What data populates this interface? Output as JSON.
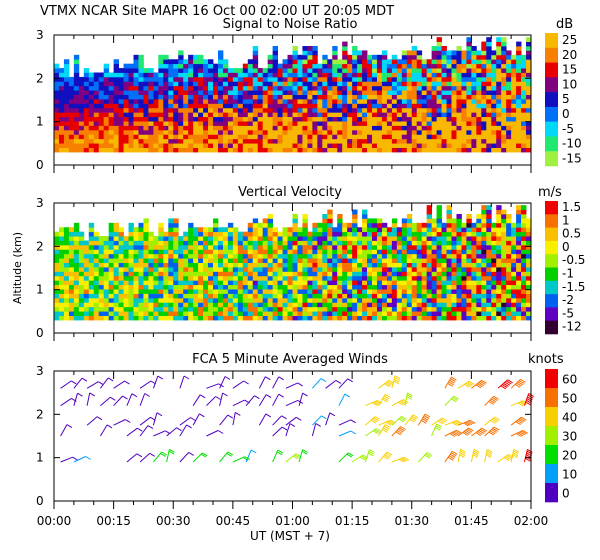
{
  "header": {
    "title": "VTMX   NCAR Site   MAPR 16 Oct 00   02:00 UT   20:05   MDT"
  },
  "chart_data": [
    {
      "type": "heatmap",
      "title": "Signal to Noise Ratio",
      "unit": "dB",
      "ylim": [
        0,
        3
      ],
      "yticks": [
        "0",
        "1",
        "2",
        "3"
      ],
      "legend": {
        "labels": [
          "25",
          "20",
          "15",
          "10",
          "5",
          "0",
          "-5",
          "-10",
          "-15"
        ],
        "colors": [
          "#f8b800",
          "#f88000",
          "#e80000",
          "#800080",
          "#1010c0",
          "#0070f8",
          "#00d8f8",
          "#20e870",
          "#a0f040"
        ]
      }
    },
    {
      "type": "heatmap",
      "title": "Vertical Velocity",
      "unit": "m/s",
      "ylabel": "Altitude (km)",
      "ylim": [
        0,
        3
      ],
      "yticks": [
        "0",
        "1",
        "2",
        "3"
      ],
      "legend": {
        "labels": [
          "1.5",
          "1",
          "0.5",
          "0",
          "-0.5",
          "-1",
          "-1.5",
          "-2",
          "-5",
          "-12"
        ],
        "colors": [
          "#f00000",
          "#f87000",
          "#f8c000",
          "#f8f000",
          "#a0f000",
          "#00d000",
          "#00c8c8",
          "#0060f0",
          "#6000c0",
          "#300030"
        ]
      }
    },
    {
      "type": "scatter",
      "title": "FCA 5 Minute Averaged Winds",
      "unit": "knots",
      "xlabel": "UT   (MST + 7)",
      "ylim": [
        0,
        3
      ],
      "yticks": [
        "0",
        "1",
        "2",
        "3"
      ],
      "xticks": [
        "00:00",
        "00:15",
        "00:30",
        "00:45",
        "01:00",
        "01:15",
        "01:30",
        "01:45",
        "02:00"
      ],
      "legend": {
        "labels": [
          "60",
          "50",
          "40",
          "30",
          "20",
          "10",
          "0"
        ],
        "colors": [
          "#f00000",
          "#f87000",
          "#f8d000",
          "#a0f000",
          "#00e000",
          "#00a0f8",
          "#5000c0"
        ]
      }
    }
  ]
}
